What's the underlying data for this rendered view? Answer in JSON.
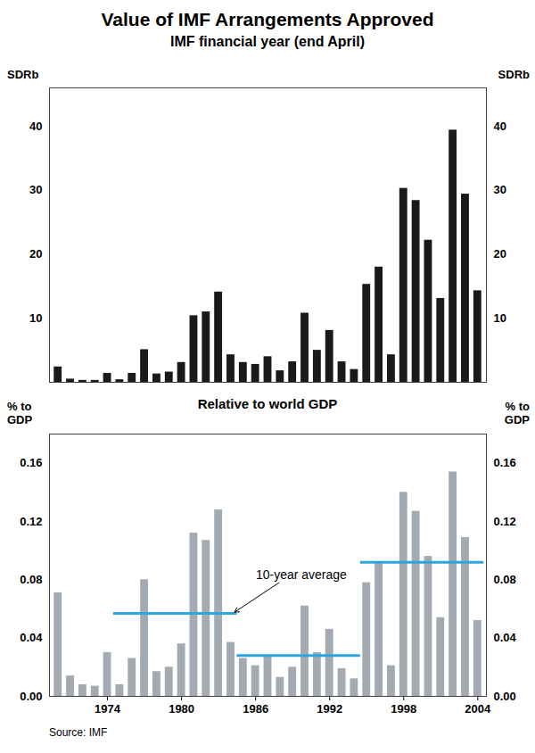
{
  "chart_data": [
    {
      "type": "bar",
      "title": "Value of IMF Arrangements Approved",
      "subtitle": "IMF financial year (end April)",
      "ylabel": "SDRb",
      "categories": [
        null,
        null,
        null,
        null,
        "1974",
        null,
        null,
        null,
        null,
        null,
        "1980",
        null,
        null,
        null,
        null,
        null,
        "1986",
        null,
        null,
        null,
        null,
        null,
        "1992",
        null,
        null,
        null,
        null,
        null,
        "1998",
        null,
        null,
        null,
        null,
        null,
        "2004"
      ],
      "values": [
        2.4,
        0.5,
        0.3,
        0.3,
        1.4,
        0.4,
        1.4,
        5.1,
        1.3,
        1.6,
        3.1,
        10.4,
        11.0,
        14.1,
        4.3,
        3.1,
        2.8,
        4.0,
        1.8,
        3.2,
        10.8,
        5.0,
        8.1,
        3.2,
        2.0,
        15.3,
        18.0,
        4.3,
        30.3,
        28.4,
        22.2,
        13.1,
        39.4,
        29.4,
        14.3
      ],
      "color": "#1a1a1a",
      "ylim": [
        0,
        46
      ],
      "yticks": [
        10,
        20,
        30,
        40
      ],
      "tick_labels": "y"
    },
    {
      "type": "bar",
      "title": "Relative to world GDP",
      "ylabel": "% to GDP",
      "categories": [
        null,
        null,
        null,
        null,
        "1974",
        null,
        null,
        null,
        null,
        null,
        "1980",
        null,
        null,
        null,
        null,
        null,
        "1986",
        null,
        null,
        null,
        null,
        null,
        "1992",
        null,
        null,
        null,
        null,
        null,
        "1998",
        null,
        null,
        null,
        null,
        null,
        "2004"
      ],
      "values": [
        0.071,
        0.014,
        0.008,
        0.007,
        0.03,
        0.008,
        0.026,
        0.08,
        0.017,
        0.02,
        0.036,
        0.112,
        0.107,
        0.128,
        0.037,
        0.026,
        0.021,
        0.028,
        0.013,
        0.02,
        0.062,
        0.03,
        0.046,
        0.019,
        0.012,
        0.078,
        0.092,
        0.021,
        0.14,
        0.127,
        0.096,
        0.054,
        0.154,
        0.109,
        0.052
      ],
      "color": "#a3aab2",
      "ylim": [
        0,
        0.18
      ],
      "yticks": [
        {
          "value": 0,
          "label": "0.00"
        },
        {
          "value": 0.04,
          "label": "0.04"
        },
        {
          "value": 0.08,
          "label": "0.08"
        },
        {
          "value": 0.12,
          "label": "0.12"
        },
        {
          "value": 0.16,
          "label": "0.16"
        }
      ],
      "averages": {
        "label": "10-year average",
        "color": "#2ba6de",
        "values": [
          null,
          null,
          null,
          null,
          null,
          0.057,
          0.057,
          0.057,
          0.057,
          0.057,
          0.057,
          0.057,
          0.057,
          0.057,
          0.057,
          0.028,
          0.028,
          0.028,
          0.028,
          0.028,
          0.028,
          0.028,
          0.028,
          0.028,
          0.028,
          0.092,
          0.092,
          0.092,
          0.092,
          0.092,
          0.092,
          0.092,
          0.092,
          0.092,
          0.092
        ]
      },
      "source": "Source: IMF"
    }
  ]
}
